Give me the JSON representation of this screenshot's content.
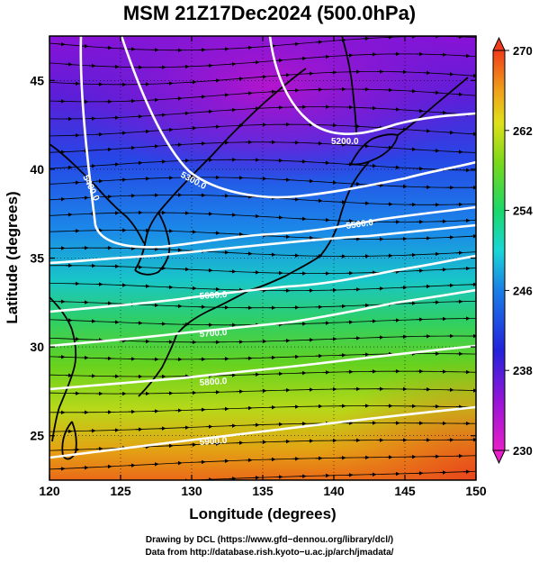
{
  "title": "MSM 21Z17Dec2024 (500.0hPa)",
  "x_axis": {
    "label": "Longitude (degrees)",
    "range": [
      120,
      150
    ],
    "ticks": [
      120,
      125,
      130,
      135,
      140,
      145,
      150
    ]
  },
  "y_axis": {
    "label": "Latitude  (degrees)",
    "range": [
      22.5,
      47.5
    ],
    "ticks": [
      25,
      30,
      35,
      40,
      45
    ]
  },
  "colorbar": {
    "range": [
      230,
      270
    ],
    "ticks": [
      230,
      238,
      246,
      254,
      262,
      270
    ]
  },
  "contours": [
    {
      "label": "5200.0"
    },
    {
      "label": "5300.0"
    },
    {
      "label": "5400.0"
    },
    {
      "label": "5500.0"
    },
    {
      "label": "5600.0"
    },
    {
      "label": "5700.0"
    },
    {
      "label": "5800.0"
    },
    {
      "label": "5900.0"
    }
  ],
  "credits": {
    "line1": "Drawing by DCL (https://www.gfd−dennou.org/library/dcl/)",
    "line2": "Data from http://database.rish.kyoto−u.ac.jp/arch/jmadata/"
  }
}
